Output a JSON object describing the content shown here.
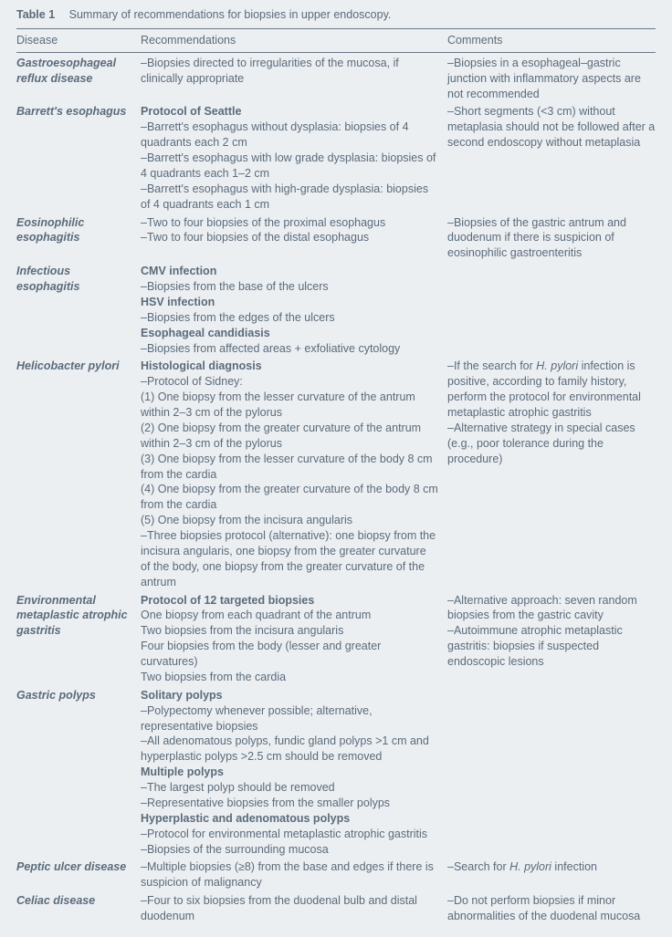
{
  "table_label": "Table 1",
  "table_caption": "Summary of recommendations for biopsies in upper endoscopy.",
  "headers": {
    "disease": "Disease",
    "reco": "Recommendations",
    "comments": "Comments"
  },
  "colors": {
    "background": "#eceff2",
    "text": "#5a6b7a",
    "rule": "#6b7a88"
  },
  "rows": [
    {
      "disease": "Gastroesophageal reflux disease",
      "reco": [
        {
          "text": "–Biopsies directed to irregularities of the mucosa, if clinically appropriate"
        }
      ],
      "comments": [
        {
          "text": "–Biopsies in a esophageal–gastric junction with inflammatory aspects are not recommended"
        }
      ]
    },
    {
      "disease": "Barrett's esophagus",
      "reco": [
        {
          "text": "Protocol of Seattle",
          "bold": true
        },
        {
          "text": "–Barrett's esophagus without dysplasia: biopsies of 4 quadrants each 2 cm"
        },
        {
          "text": "–Barrett's esophagus with low grade dysplasia: biopsies of 4 quadrants each 1–2 cm"
        },
        {
          "text": "–Barrett's esophagus with high-grade dysplasia: biopsies of 4 quadrants each 1 cm"
        }
      ],
      "comments": [
        {
          "text": "–Short segments (<3 cm) without metaplasia should not be followed after a second endoscopy without metaplasia"
        }
      ]
    },
    {
      "disease": "Eosinophilic esophagitis",
      "reco": [
        {
          "text": "–Two to four biopsies of the proximal esophagus"
        },
        {
          "text": "–Two to four biopsies of the distal esophagus"
        }
      ],
      "comments": [
        {
          "text": "–Biopsies of the gastric antrum and duodenum if there is suspicion of eosinophilic gastroenteritis"
        }
      ]
    },
    {
      "disease": "Infectious esophagitis",
      "reco": [
        {
          "text": "CMV infection",
          "bold": true
        },
        {
          "text": "–Biopsies from the base of the ulcers"
        },
        {
          "text": "HSV infection",
          "bold": true
        },
        {
          "text": "–Biopsies from the edges of the ulcers"
        },
        {
          "text": "Esophageal candidiasis",
          "bold": true
        },
        {
          "text": "–Biopsies from affected areas + exfoliative cytology"
        }
      ],
      "comments": []
    },
    {
      "disease": "Helicobacter pylori",
      "disease_italic_species": true,
      "reco": [
        {
          "text": "Histological diagnosis",
          "bold": true
        },
        {
          "text": "–Protocol of Sidney:"
        },
        {
          "text": "(1) One biopsy from the lesser curvature of the antrum within 2–3 cm of the pylorus"
        },
        {
          "text": "(2) One biopsy from the greater curvature of the antrum within 2–3 cm of the pylorus"
        },
        {
          "text": "(3) One biopsy from the lesser curvature of the body 8 cm from the cardia"
        },
        {
          "text": "(4) One biopsy from the greater curvature of the body 8 cm from the cardia"
        },
        {
          "text": "(5) One biopsy from the incisura angularis"
        },
        {
          "text": "–Three biopsies protocol (alternative): one biopsy from the incisura angularis, one biopsy from the greater curvature of the body, one biopsy from the greater curvature of the antrum"
        }
      ],
      "comments": [
        {
          "prefix": "–If the search for ",
          "italic_part": "H. pylori",
          "suffix": " infection is positive, according to family history, perform the protocol for environmental metaplastic atrophic gastritis"
        },
        {
          "text": "–Alternative strategy in special cases (e.g., poor tolerance during the procedure)"
        }
      ]
    },
    {
      "disease": "Environmental metaplastic atrophic gastritis",
      "reco": [
        {
          "text": "Protocol of 12 targeted biopsies",
          "bold": true
        },
        {
          "text": "One biopsy from each quadrant of the antrum"
        },
        {
          "text": "Two biopsies from the incisura angularis"
        },
        {
          "text": "Four biopsies from the body (lesser and greater curvatures)"
        },
        {
          "text": "Two biopsies from the cardia"
        }
      ],
      "comments": [
        {
          "text": "–Alternative approach: seven random biopsies from the gastric cavity"
        },
        {
          "text": "–Autoimmune atrophic metaplastic gastritis: biopsies if suspected endoscopic lesions"
        }
      ]
    },
    {
      "disease": "Gastric polyps",
      "reco": [
        {
          "text": "Solitary polyps",
          "bold": true
        },
        {
          "text": "–Polypectomy whenever possible; alternative, representative biopsies"
        },
        {
          "text": "–All adenomatous polyps, fundic gland polyps >1 cm and hyperplastic polyps >2.5 cm should be removed"
        },
        {
          "text": "Multiple polyps",
          "bold": true
        },
        {
          "text": "–The largest polyp should be removed"
        },
        {
          "text": "–Representative biopsies from the smaller polyps"
        },
        {
          "text": "Hyperplastic and adenomatous polyps",
          "bold": true
        },
        {
          "text": "–Protocol for environmental metaplastic atrophic gastritis"
        },
        {
          "text": "–Biopsies of the surrounding mucosa"
        }
      ],
      "comments": []
    },
    {
      "disease": "Peptic ulcer disease",
      "reco": [
        {
          "text": "–Multiple biopsies (≥8) from the base and edges if there is suspicion of malignancy"
        }
      ],
      "comments": [
        {
          "prefix": "–Search for ",
          "italic_part": "H. pylori",
          "suffix": " infection"
        }
      ]
    },
    {
      "disease": "Celiac disease",
      "reco": [
        {
          "text": "–Four to six biopsies from the duodenal bulb and distal duodenum"
        }
      ],
      "comments": [
        {
          "text": "–Do not perform biopsies if minor abnormalities of the duodenal mucosa"
        }
      ]
    }
  ]
}
